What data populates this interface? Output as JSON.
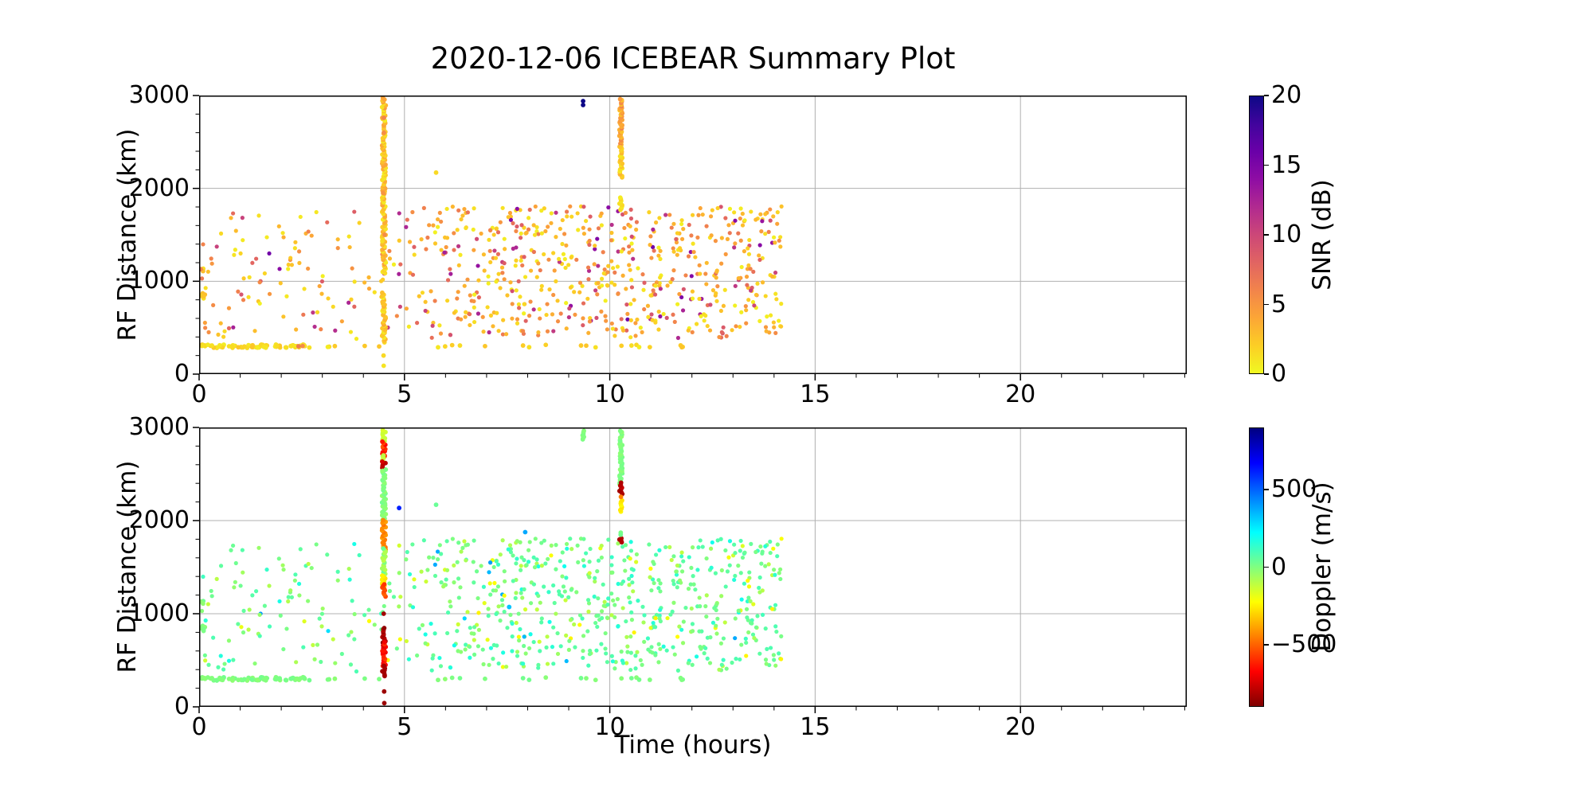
{
  "title": "2020-12-06 ICEBEAR Summary Plot",
  "axes": {
    "x_label": "Time (hours)",
    "y_label": "RF Distance (km)",
    "x_tick_labels": [
      "0",
      "5",
      "10",
      "15",
      "20"
    ],
    "x_tick_values": [
      0,
      5,
      10,
      15,
      20
    ],
    "x_minor_step": 1,
    "x_range": [
      0,
      24.05
    ],
    "y_tick_labels": [
      "0",
      "1000",
      "2000",
      "3000"
    ],
    "y_tick_values": [
      0,
      1000,
      2000,
      3000
    ],
    "y_minor_step": 200,
    "y_range": [
      0,
      3000
    ],
    "grid_color": "#b0b0b0",
    "spine_color": "#000000",
    "background": "#ffffff"
  },
  "colorbars": [
    {
      "label": "SNR (dB)",
      "tick_labels": [
        "20",
        "15",
        "10",
        "5",
        "0"
      ],
      "tick_values": [
        20,
        15,
        10,
        5,
        0
      ],
      "vmin": 0,
      "vmax": 20
    },
    {
      "label": "Doppler (m/s)",
      "tick_labels": [
        "500",
        "0",
        "−500"
      ],
      "tick_values": [
        500,
        0,
        -500
      ],
      "vmin": -900,
      "vmax": 900
    }
  ],
  "chart_data": {
    "type": "scatter",
    "title": "2020-12-06 ICEBEAR Summary Plot",
    "xlabel": "Time (hours)",
    "ylabel": "RF Distance (km)",
    "xlim": [
      0,
      24.05
    ],
    "ylim": [
      0,
      3000
    ],
    "grid": true,
    "seed": 42,
    "dot_radius": 2.6,
    "streak_radius": 2.9,
    "colormaps": {
      "snr": [
        [
          0,
          "#f0f921"
        ],
        [
          0.1,
          "#fcce25"
        ],
        [
          0.2,
          "#fca636"
        ],
        [
          0.3,
          "#f2844b"
        ],
        [
          0.4,
          "#e16462"
        ],
        [
          0.5,
          "#cc4778"
        ],
        [
          0.6,
          "#b12a90"
        ],
        [
          0.7,
          "#8f0da4"
        ],
        [
          0.8,
          "#6a00a8"
        ],
        [
          0.9,
          "#41049d"
        ],
        [
          1,
          "#0d0887"
        ]
      ],
      "doppler": [
        [
          0,
          "#800000"
        ],
        [
          0.125,
          "#ff0000"
        ],
        [
          0.25,
          "#ff8000"
        ],
        [
          0.375,
          "#ffff00"
        ],
        [
          0.5,
          "#80ff80"
        ],
        [
          0.625,
          "#00ffff"
        ],
        [
          0.75,
          "#0080ff"
        ],
        [
          0.875,
          "#0000ff"
        ],
        [
          1,
          "#000080"
        ]
      ]
    },
    "snr_dist": [
      {
        "p": 0.52,
        "range": [
          0.3,
          3.5
        ]
      },
      {
        "p": 0.77,
        "range": [
          3.5,
          6.5
        ]
      },
      {
        "p": 0.9,
        "range": [
          6.5,
          9.5
        ]
      },
      {
        "p": 0.97,
        "range": [
          9.5,
          12.5
        ]
      },
      {
        "p": 1.0,
        "range": [
          12.5,
          16
        ]
      }
    ],
    "dop_dist": [
      {
        "p": 0.62,
        "range": [
          -20,
          90
        ]
      },
      {
        "p": 0.8,
        "range": [
          -120,
          -20
        ]
      },
      {
        "p": 0.92,
        "range": [
          90,
          200
        ]
      },
      {
        "p": 0.985,
        "range": [
          -250,
          -120
        ]
      },
      {
        "p": 1.0,
        "range": [
          250,
          420
        ]
      }
    ],
    "scatter_regions": [
      {
        "name": "early-sparse-cloud",
        "t": [
          0.05,
          4.95
        ],
        "rf": [
          380,
          1760
        ],
        "n": 115
      },
      {
        "name": "main-cloud",
        "t": [
          5.0,
          14.2
        ],
        "rf": [
          380,
          1810
        ],
        "n": 620,
        "t_pow": 0.85
      },
      {
        "name": "low-band-dense",
        "t": [
          0.03,
          2.72
        ],
        "rf": [
          282,
          318
        ],
        "n": 80,
        "r": 2.9,
        "snr": [
          0.5,
          2.5
        ],
        "dop": [
          -25,
          25
        ]
      },
      {
        "name": "low-band-sparse",
        "t": [
          2.9,
          11.8
        ],
        "rf": [
          284,
          316
        ],
        "n": 24,
        "r": 2.9,
        "snr": [
          0.5,
          2.5
        ],
        "dop": [
          -25,
          25
        ]
      },
      {
        "name": "left-edge-cluster",
        "t": [
          0.04,
          0.14
        ],
        "rf": [
          795,
          870
        ],
        "n": 5,
        "r": 2.9,
        "snr": [
          0.5,
          3
        ],
        "dop": [
          -20,
          20
        ]
      },
      {
        "name": "left-edge-cluster-high",
        "t": [
          0.02,
          0.1
        ],
        "rf": [
          1100,
          1165
        ],
        "n": 3,
        "r": 2.9,
        "snr": [
          1,
          9
        ],
        "dop": [
          -30,
          30
        ]
      }
    ],
    "panels": [
      {
        "id": "snr",
        "value_key": "snr",
        "colorbar": 0,
        "streaks": [
          {
            "t": 4.5,
            "jitter": 0.045,
            "step": 16,
            "segments": [
              {
                "rf": [
                  1085,
                  2965
                ],
                "v": [
                  0.5,
                  4.5
                ]
              },
              {
                "rf": [
                  345,
                  860
                ],
                "v": [
                  0.5,
                  4.0
                ]
              }
            ],
            "dots": [
              {
                "rf": 200,
                "v": 1.5
              },
              {
                "rf": 90,
                "v": 1.0
              }
            ]
          },
          {
            "t": 10.27,
            "jitter": 0.035,
            "step": 16,
            "segments": [
              {
                "rf": [
                  2437,
                  2965
                ],
                "v": [
                  2.5,
                  6.5
                ]
              },
              {
                "rf": [
                  2120,
                  2437
                ],
                "v": [
                  0.5,
                  3.5
                ]
              },
              {
                "rf": [
                  1770,
                  1890
                ],
                "v": [
                  0.5,
                  3.0
                ]
              }
            ],
            "dots": []
          }
        ],
        "extra_dots": [
          {
            "t": 9.35,
            "rf": 2940,
            "v": 20
          },
          {
            "t": 9.35,
            "rf": 2898,
            "v": 20
          },
          {
            "t": 5.77,
            "rf": 2170,
            "v": 1.5
          },
          {
            "t": 2.42,
            "rf": 300,
            "v": 6.5
          },
          {
            "t": 2.52,
            "rf": 303,
            "v": 5.5
          },
          {
            "t": 4.5,
            "rf": 2760,
            "v": 6.0
          },
          {
            "t": 4.5,
            "rf": 2600,
            "v": 5.5
          },
          {
            "t": 4.48,
            "rf": 1950,
            "v": 5.0
          },
          {
            "t": 4.52,
            "rf": 1500,
            "v": 5.5
          }
        ]
      },
      {
        "id": "doppler",
        "value_key": "dop",
        "colorbar": 1,
        "streaks": [
          {
            "t": 4.5,
            "jitter": 0.045,
            "step": 16,
            "segments": [
              {
                "rf": [
                  2840,
                  2965
                ],
                "v": [
                  -170,
                  -110
                ]
              },
              {
                "rf": [
                  2685,
                  2840
                ],
                "v": [
                  -680,
                  -520
                ]
              },
              {
                "rf": [
                  2620,
                  2685
                ],
                "v": [
                  -140,
                  -90
                ]
              },
              {
                "rf": [
                  2550,
                  2620
                ],
                "v": [
                  -830,
                  -720
                ]
              },
              {
                "rf": [
                  1990,
                  2550
                ],
                "v": [
                  -35,
                  35
                ]
              },
              {
                "rf": [
                  1685,
                  1990
                ],
                "v": [
                  -470,
                  -390
                ]
              },
              {
                "rf": [
                  1410,
                  1685
                ],
                "v": [
                  -120,
                  60
                ]
              },
              {
                "rf": [
                  1300,
                  1410
                ],
                "v": [
                  -290,
                  -210
                ]
              },
              {
                "rf": [
                  1185,
                  1300
                ],
                "v": [
                  -590,
                  -500
                ]
              },
              {
                "rf": [
                  690,
                  835
                ],
                "v": [
                  -870,
                  -790
                ]
              },
              {
                "rf": [
                  580,
                  690
                ],
                "v": [
                  -840,
                  -560
                ]
              },
              {
                "rf": [
                  435,
                  580
                ],
                "v": [
                  -690,
                  -560
                ]
              },
              {
                "rf": [
                  330,
                  435
                ],
                "v": [
                  -850,
                  -800
                ]
              }
            ],
            "dots": [
              {
                "rf": 1000,
                "v": -840
              },
              {
                "rf": 165,
                "v": -850
              },
              {
                "rf": 40,
                "v": -850
              }
            ]
          },
          {
            "t": 10.27,
            "jitter": 0.035,
            "step": 16,
            "segments": [
              {
                "rf": [
                  2390,
                  2965
                ],
                "v": [
                  -25,
                  25
                ]
              },
              {
                "rf": [
                  2290,
                  2390
                ],
                "v": [
                  -840,
                  -770
                ]
              },
              {
                "rf": [
                  2100,
                  2210
                ],
                "v": [
                  -280,
                  -220
                ]
              },
              {
                "rf": [
                  1765,
                  1810
                ],
                "v": [
                  -840,
                  -800
                ]
              }
            ],
            "dots": [
              {
                "rf": 2255,
                "v": -450
              },
              {
                "rf": 1870,
                "v": 10
              },
              {
                "rf": 1848,
                "v": 25
              }
            ]
          },
          {
            "t": 9.35,
            "jitter": 0.02,
            "step": 16,
            "segments": [
              {
                "rf": [
                  2870,
                  2965
                ],
                "v": [
                  -15,
                  15
                ]
              }
            ],
            "dots": []
          }
        ],
        "extra_dots": [
          {
            "t": 4.87,
            "rf": 2135,
            "v": 620
          },
          {
            "t": 7.94,
            "rf": 1876,
            "v": 380
          },
          {
            "t": 7.55,
            "rf": 1072,
            "v": 330
          },
          {
            "t": 5.77,
            "rf": 2170,
            "v": 40
          }
        ]
      }
    ]
  }
}
